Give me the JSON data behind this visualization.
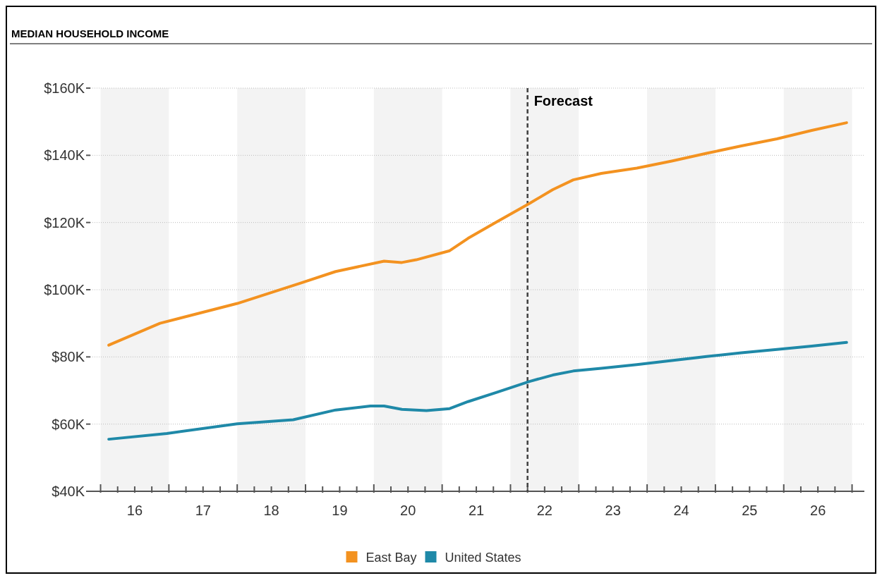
{
  "chart_data": {
    "type": "line",
    "title": "MEDIAN HOUSEHOLD INCOME",
    "xlim": [
      15.35,
      26.68
    ],
    "xticks": [
      {
        "value": 15.5,
        "label": null
      },
      {
        "value": 15.75,
        "label": null
      },
      16,
      {
        "value": 16.25,
        "label": null
      },
      {
        "value": 16.5,
        "label": null
      },
      {
        "value": 16.75,
        "label": null
      },
      17,
      {
        "value": 17.25,
        "label": null
      },
      {
        "value": 17.5,
        "label": null
      },
      {
        "value": 17.75,
        "label": null
      },
      18,
      {
        "value": 18.25,
        "label": null
      },
      {
        "value": 18.5,
        "label": null
      },
      {
        "value": 18.75,
        "label": null
      },
      19,
      {
        "value": 19.25,
        "label": null
      },
      {
        "value": 19.5,
        "label": null
      },
      {
        "value": 19.75,
        "label": null
      },
      20,
      {
        "value": 20.25,
        "label": null
      },
      {
        "value": 20.5,
        "label": null
      },
      {
        "value": 20.75,
        "label": null
      },
      21,
      {
        "value": 21.25,
        "label": null
      },
      {
        "value": 21.5,
        "label": null
      },
      {
        "value": 21.75,
        "label": null
      },
      22,
      {
        "value": 22.25,
        "label": null
      },
      {
        "value": 22.5,
        "label": null
      },
      {
        "value": 22.75,
        "label": null
      },
      23,
      {
        "value": 23.25,
        "label": null
      },
      {
        "value": 23.5,
        "label": null
      },
      {
        "value": 23.75,
        "label": null
      },
      24,
      {
        "value": 24.25,
        "label": null
      },
      {
        "value": 24.5,
        "label": null
      },
      {
        "value": 24.75,
        "label": null
      },
      25,
      {
        "value": 25.25,
        "label": null
      },
      {
        "value": 25.5,
        "label": null
      },
      {
        "value": 25.75,
        "label": null
      },
      26,
      {
        "value": 26.25,
        "label": null
      },
      {
        "value": 26.5,
        "label": null
      }
    ],
    "ylim": [
      40,
      160
    ],
    "yticks": [
      {
        "value": 40,
        "label": "$40K"
      },
      {
        "value": 60,
        "label": "$60K"
      },
      {
        "value": 80,
        "label": "$80K"
      },
      {
        "value": 100,
        "label": "$100K"
      },
      {
        "value": 120,
        "label": "$120K"
      },
      {
        "value": 140,
        "label": "$140K"
      },
      {
        "value": 160,
        "label": "$160K"
      }
    ],
    "grid": "y",
    "legend": "bottom",
    "marker": "none",
    "line_style": "solid",
    "ref_lines": [
      {
        "axis": "x",
        "value": 21.75,
        "label": "Forecast",
        "color": "#404040",
        "line_style": "dashed"
      }
    ],
    "bands": [
      {
        "axis": "x",
        "from": 15.5,
        "to": 16.5,
        "label": null,
        "color": "#f3f3f3"
      },
      {
        "axis": "x",
        "from": 17.5,
        "to": 18.5,
        "label": null,
        "color": "#f3f3f3"
      },
      {
        "axis": "x",
        "from": 19.5,
        "to": 20.5,
        "label": null,
        "color": "#f3f3f3"
      },
      {
        "axis": "x",
        "from": 21.5,
        "to": 22.5,
        "label": null,
        "color": "#f3f3f3"
      },
      {
        "axis": "x",
        "from": 23.5,
        "to": 24.5,
        "label": null,
        "color": "#f3f3f3"
      },
      {
        "axis": "x",
        "from": 25.5,
        "to": 26.5,
        "label": null,
        "color": "#f3f3f3"
      }
    ],
    "series": [
      {
        "name": "East Bay",
        "color": "#f39220",
        "x": [
          15.62,
          16.37,
          17.5,
          18.42,
          18.94,
          19.65,
          19.91,
          20.12,
          20.61,
          20.88,
          21.29,
          21.78,
          22.12,
          22.42,
          22.83,
          23.35,
          23.86,
          24.37,
          24.88,
          25.4,
          25.91,
          26.42
        ],
        "values": [
          83.5,
          90,
          95.9,
          101.9,
          105.4,
          108.5,
          108.1,
          108.9,
          111.6,
          115.3,
          120.1,
          125.7,
          129.8,
          132.7,
          134.6,
          136.2,
          138.3,
          140.6,
          142.8,
          144.9,
          147.4,
          149.7
        ]
      },
      {
        "name": "United States",
        "color": "#1f89a8",
        "x": [
          15.62,
          16.47,
          17.5,
          18.32,
          18.94,
          19.45,
          19.65,
          19.91,
          20.27,
          20.61,
          20.88,
          21.29,
          21.78,
          22.12,
          22.42,
          22.83,
          23.35,
          23.86,
          24.37,
          24.88,
          25.4,
          25.91,
          26.42
        ],
        "values": [
          55.5,
          57.2,
          60.1,
          61.3,
          64.2,
          65.4,
          65.4,
          64.4,
          64.0,
          64.6,
          66.7,
          69.4,
          72.7,
          74.6,
          75.8,
          76.6,
          77.7,
          78.9,
          80.1,
          81.2,
          82.2,
          83.2,
          84.3
        ]
      }
    ]
  }
}
